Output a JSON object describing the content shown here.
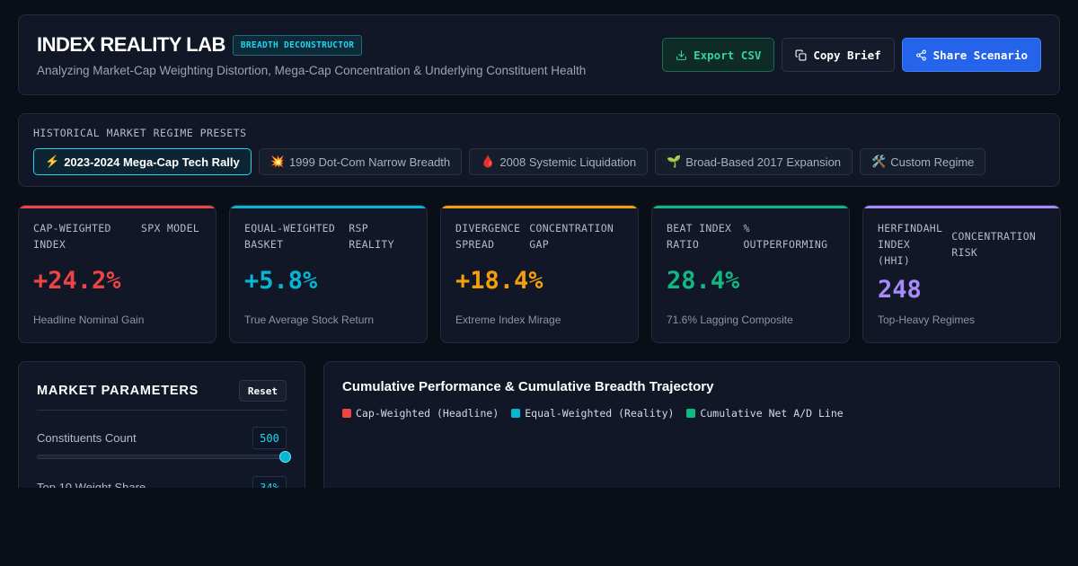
{
  "header": {
    "title": "INDEX REALITY LAB",
    "badge": "BREADTH DECONSTRUCTOR",
    "subtitle": "Analyzing Market-Cap Weighting Distortion, Mega-Cap Concentration & Underlying Constituent Health"
  },
  "actions": {
    "export_label": "Export CSV",
    "copy_label": "Copy Brief",
    "share_label": "Share Scenario"
  },
  "presets": {
    "label": "HISTORICAL MARKET REGIME PRESETS",
    "items": [
      {
        "icon": "⚡",
        "label": "2023-2024 Mega-Cap Tech Rally",
        "active": true
      },
      {
        "icon": "💥",
        "label": "1999 Dot-Com Narrow Breadth",
        "active": false
      },
      {
        "icon": "🩸",
        "label": "2008 Systemic Liquidation",
        "active": false
      },
      {
        "icon": "🌱",
        "label": "Broad-Based 2017 Expansion",
        "active": false
      },
      {
        "icon": "🛠️",
        "label": "Custom Regime",
        "active": false
      }
    ]
  },
  "kpis": [
    {
      "label_a": "CAP-WEIGHTED INDEX",
      "label_b": "SPX MODEL",
      "value": "+24.2%",
      "note": "Headline Nominal Gain",
      "color": "#ef4444"
    },
    {
      "label_a": "EQUAL-WEIGHTED BASKET",
      "label_b": "RSP REALITY",
      "value": "+5.8%",
      "note": "True Average Stock Return",
      "color": "#06b6d4"
    },
    {
      "label_a": "DIVERGENCE SPREAD",
      "label_b": "CONCENTRATION GAP",
      "value": "+18.4%",
      "note": "Extreme Index Mirage",
      "color": "#f59e0b"
    },
    {
      "label_a": "BEAT INDEX RATIO",
      "label_b": "% OUTPERFORMING",
      "value": "28.4%",
      "note": "71.6% Lagging Composite",
      "color": "#10b981"
    },
    {
      "label_a": "HERFINDAHL INDEX (HHI)",
      "label_b": "CONCENTRATION RISK",
      "value": "248",
      "note": "Top-Heavy Regimes",
      "color": "#a78bfa"
    }
  ],
  "params": {
    "title": "MARKET PARAMETERS",
    "reset_label": "Reset",
    "constituents_label": "Constituents Count",
    "constituents_value": "500",
    "constituents_fraction": 1.0,
    "top10_label": "Top 10 Weight Share",
    "top10_value": "34%"
  },
  "chart": {
    "title": "Cumulative Performance & Cumulative Breadth Trajectory",
    "legend": [
      {
        "label": "Cap-Weighted (Headline)",
        "color": "#ef4444"
      },
      {
        "label": "Equal-Weighted (Reality)",
        "color": "#06b6d4"
      },
      {
        "label": "Cumulative Net A/D Line",
        "color": "#10b981"
      }
    ]
  }
}
